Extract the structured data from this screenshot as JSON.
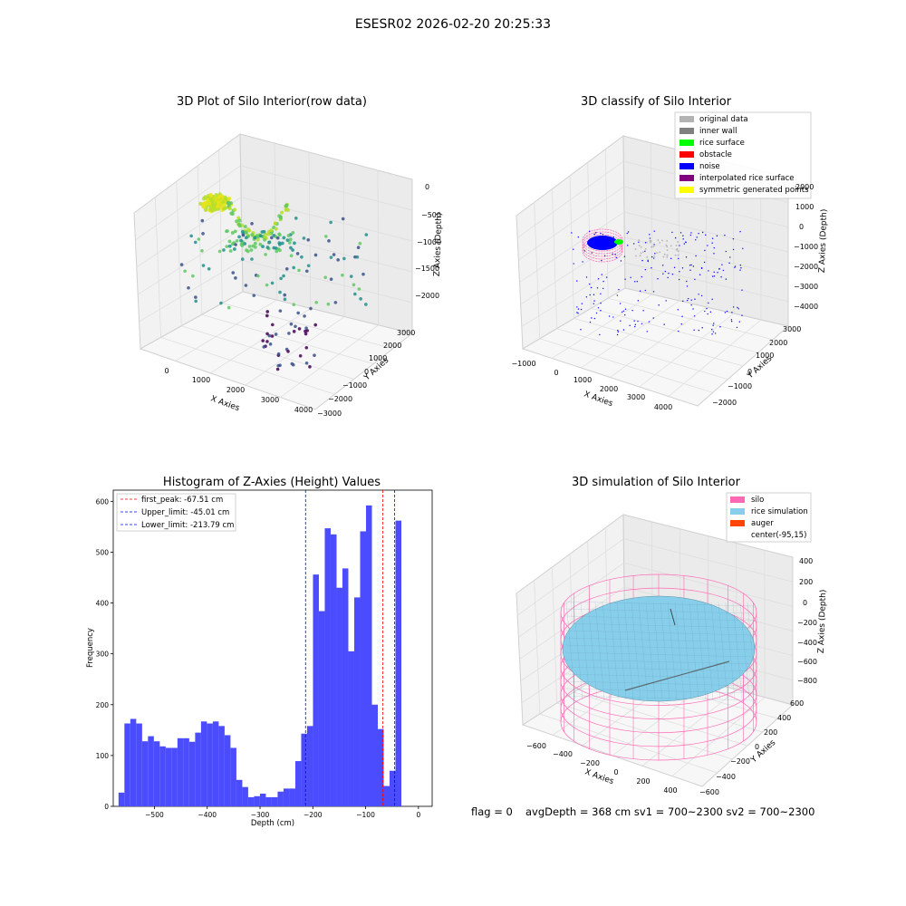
{
  "suptitle": "ESESR02 2026-02-20 20:25:33",
  "footer": {
    "flag": "flag = 0",
    "stats": "avgDepth = 368 cm  sv1 = 700~2300  sv2 = 700~2300"
  },
  "colors": {
    "hist_bar": "#4c4cff",
    "first_peak_line": "#ff0000",
    "limit_line": "#0000ff",
    "silo": "#ff69b4",
    "rice": "#87ceeb",
    "auger": "#ff4500",
    "original": "#b3b3b3",
    "inner_wall": "#808080",
    "rice_surface": "#00ff00",
    "obstacle": "#ff0000",
    "noise": "#0000ff",
    "interpolated": "#800080",
    "symmetric": "#ffff00"
  },
  "chart_data": [
    {
      "type": "scatter",
      "projection": "3d",
      "title": "3D Plot of Silo Interior(row data)",
      "xlabel": "X Axies",
      "ylabel": "Y Axies",
      "zlabel": "Z Axies (Depth)",
      "xticks": [
        "0",
        "1000",
        "2000",
        "3000",
        "4000"
      ],
      "yticks": [
        "3000",
        "2000",
        "1000",
        "0",
        "−1000",
        "−2000",
        "−3000"
      ],
      "zticks": [
        "0",
        "−500",
        "−1000",
        "−1500",
        "−2000"
      ],
      "colormap": "viridis"
    },
    {
      "type": "scatter",
      "projection": "3d",
      "title": "3D classify of Silo Interior",
      "xlabel": "X Axies",
      "ylabel": "Y Axies",
      "zlabel": "Z Axies (Depth)",
      "xticks": [
        "−1000",
        "0",
        "1000",
        "2000",
        "3000",
        "4000"
      ],
      "yticks": [
        "3000",
        "2000",
        "1000",
        "0",
        "−1000",
        "−2000"
      ],
      "zticks": [
        "2000",
        "1000",
        "0",
        "−1000",
        "−2000",
        "−3000",
        "−4000"
      ],
      "legend": [
        {
          "label": "original data",
          "color": "#b3b3b3"
        },
        {
          "label": "inner wall",
          "color": "#808080"
        },
        {
          "label": "rice surface",
          "color": "#00ff00"
        },
        {
          "label": "obstacle",
          "color": "#ff0000"
        },
        {
          "label": "noise",
          "color": "#0000ff"
        },
        {
          "label": "interpolated rice surface",
          "color": "#800080"
        },
        {
          "label": "symmetric generated points",
          "color": "#ffff00"
        }
      ]
    },
    {
      "type": "bar",
      "title": "Histogram of Z-Axies (Height) Values",
      "xlabel": "Depth (cm)",
      "ylabel": "Frequency",
      "xlim": [
        -578,
        26
      ],
      "ylim": [
        0,
        622
      ],
      "xticks": [
        -500,
        -400,
        -300,
        -200,
        -100,
        0
      ],
      "xtick_labels": [
        "−500",
        "−400",
        "−300",
        "−200",
        "−100",
        "0"
      ],
      "yticks": [
        0,
        100,
        200,
        300,
        400,
        500,
        600
      ],
      "bin_start": -568,
      "bin_width": 11.16,
      "counts": [
        27,
        163,
        172,
        163,
        128,
        138,
        128,
        118,
        115,
        115,
        134,
        134,
        127,
        145,
        167,
        163,
        167,
        158,
        140,
        115,
        52,
        38,
        18,
        20,
        25,
        18,
        18,
        29,
        35,
        35,
        89,
        143,
        158,
        456,
        384,
        547,
        535,
        430,
        468,
        305,
        411,
        541,
        592,
        200,
        152,
        40,
        70,
        562
      ],
      "vlines": [
        {
          "label": "first_peak: -67.51 cm",
          "x": -67.51,
          "color": "#ff0000"
        },
        {
          "label": "Upper_limit: -45.01 cm",
          "x": -45.01,
          "color": "#0000ff"
        },
        {
          "label": "Lower_limit: -213.79 cm",
          "x": -213.79,
          "color": "#0000ff"
        }
      ],
      "legend_position": "upper-left",
      "grid": false
    },
    {
      "type": "surface",
      "projection": "3d",
      "title": "3D simulation of Silo Interior",
      "xlabel": "X Axies",
      "ylabel": "Y Axies",
      "zlabel": "Z Axies (Depth)",
      "xticks": [
        "−600",
        "−400",
        "−200",
        "0",
        "200",
        "400"
      ],
      "yticks": [
        "600",
        "400",
        "200",
        "0",
        "−200",
        "−400",
        "−600"
      ],
      "zticks": [
        "400",
        "200",
        "0",
        "−200",
        "−400",
        "−600",
        "−800"
      ],
      "legend": [
        {
          "label": "silo",
          "color": "#ff69b4"
        },
        {
          "label": "rice simulation",
          "color": "#87ceeb"
        },
        {
          "label": "auger",
          "color": "#ff4500"
        },
        {
          "label": "center(-95,15)",
          "color": ""
        }
      ]
    }
  ]
}
